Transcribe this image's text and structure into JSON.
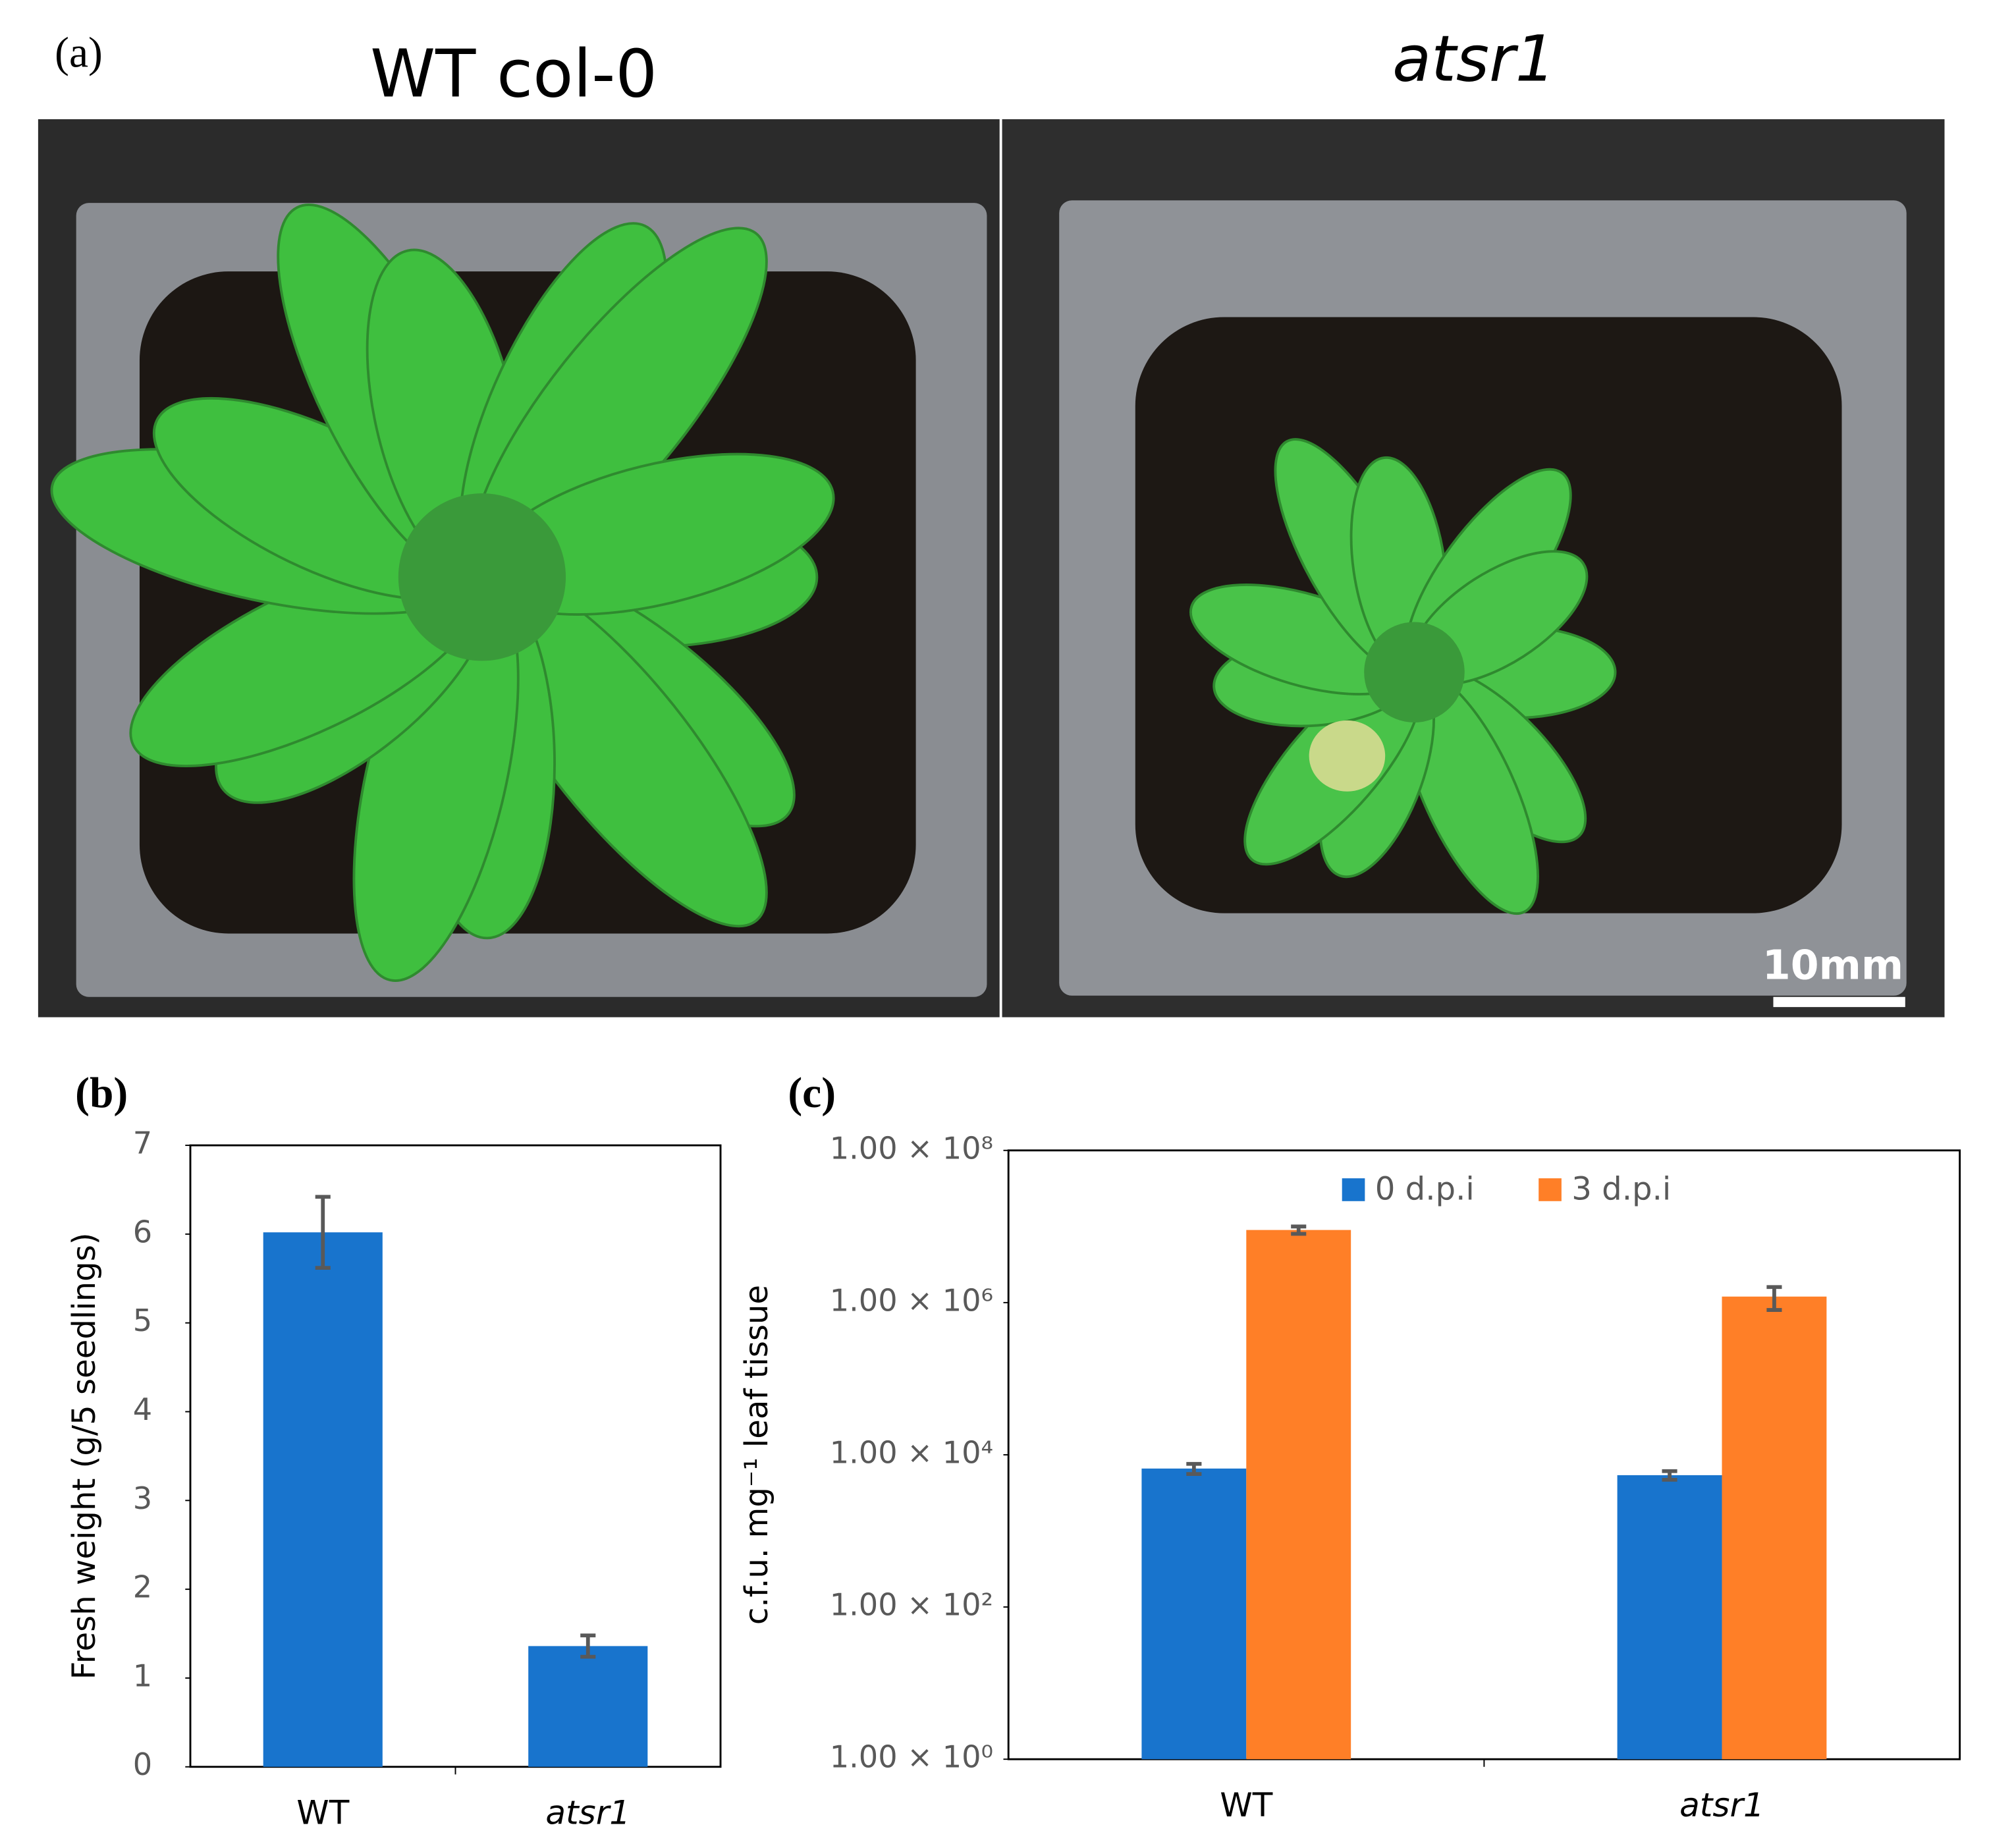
{
  "figure": {
    "panel_a": {
      "label": "(a)",
      "titles": [
        "WT col-0",
        "atsr1"
      ],
      "scale_bar": "10mm"
    }
  },
  "chart_data": [
    {
      "type": "bar",
      "label": "(b)",
      "ylabel": "Fresh weight (g/5 seedlings)",
      "categories": [
        "WT",
        "atsr1"
      ],
      "values": [
        6.02,
        1.36
      ],
      "errors": [
        0.4,
        0.12
      ],
      "color": "#1874cd",
      "ylim": [
        0,
        7
      ],
      "yticks": [
        0,
        1,
        2,
        3,
        4,
        5,
        6,
        7
      ]
    },
    {
      "type": "bar",
      "label": "(c)",
      "ylabel": "c.f.u. mg⁻¹ leaf tissue",
      "log_scale": true,
      "categories": [
        "WT",
        "atsr1"
      ],
      "series": [
        {
          "name": "0 d.p.i",
          "color": "#1874cd",
          "values": [
            6600,
            5400
          ],
          "errors": [
            1000,
            700
          ]
        },
        {
          "name": "3 d.p.i",
          "color": "#ff7f27",
          "values": [
            9000000,
            1200000
          ],
          "errors": [
            1000000,
            400000
          ]
        }
      ],
      "ylim": [
        1,
        100000000
      ],
      "yticks": [
        {
          "value": 1,
          "label": "1.00 × 10⁰"
        },
        {
          "value": 100,
          "label": "1.00 × 10²"
        },
        {
          "value": 10000,
          "label": "1.00 × 10⁴"
        },
        {
          "value": 1000000,
          "label": "1.00 × 10⁶"
        },
        {
          "value": 100000000,
          "label": "1.00 × 10⁸"
        }
      ],
      "legend": "top"
    }
  ]
}
